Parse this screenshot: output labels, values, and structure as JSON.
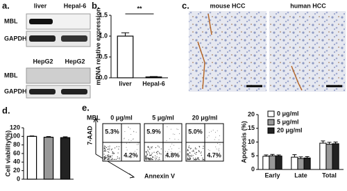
{
  "panel_labels": [
    "a.",
    "b.",
    "c.",
    "d.",
    "e."
  ],
  "blot_top": {
    "lanes": [
      "liver",
      "Hepal-6"
    ],
    "rows": [
      "MBL",
      "GAPDH"
    ]
  },
  "blot_bottom": {
    "lanes": [
      "HepG2",
      "HepG2"
    ],
    "rows": [
      "MBL",
      "GAPDH"
    ]
  },
  "histology": {
    "titles": [
      "mouse HCC",
      "human HCC"
    ]
  },
  "flow": {
    "row_label": "MBL",
    "doses": [
      "0 μg/ml",
      "5 μg/ml",
      "20 μg/ml"
    ],
    "upper_right": [
      "5.3%",
      "5.9%",
      "5.0%"
    ],
    "lower_right": [
      "4.2%",
      "4.8%",
      "4.7%"
    ],
    "y_label": "7-AAD",
    "x_label": "Annexin V"
  },
  "chart_data": [
    {
      "type": "bar",
      "y_label": "mRNA relative expression",
      "categories": [
        "liver",
        "Hepal-6"
      ],
      "values": [
        1.0,
        0.02
      ],
      "errors": [
        0.08,
        0.01
      ],
      "color": "#ffffff",
      "annotation": "**",
      "ylim": [
        0,
        1.5
      ],
      "yticks": [
        {
          "value": 0,
          "label": "0.0"
        },
        {
          "value": 0.5,
          "label": "0.5"
        },
        {
          "value": 1,
          "label": "1.0"
        },
        {
          "value": 1.5,
          "label": "1.5"
        }
      ]
    },
    {
      "type": "bar",
      "y_label": "Cell viability(%)",
      "categories": [
        null,
        null,
        null
      ],
      "values": [
        100,
        98,
        97
      ],
      "errors": [
        1,
        1.5,
        2
      ],
      "colors": [
        "#ffffff",
        "#999999",
        "#222222"
      ],
      "ylim": [
        0,
        120
      ],
      "yticks": [
        0,
        20,
        40,
        60,
        80,
        100,
        120
      ]
    },
    {
      "type": "grouped_bar",
      "y_label": "Apoptosis (%)",
      "categories": [
        "Early",
        "Late",
        "Total"
      ],
      "series": [
        {
          "name": "0 μg/ml",
          "color": "#ffffff",
          "values": [
            4.8,
            4.5,
            9.6
          ],
          "errors": [
            0.5,
            0.9,
            0.8
          ]
        },
        {
          "name": "5 μg/ml",
          "color": "#999999",
          "values": [
            5.0,
            4.0,
            9.2
          ],
          "errors": [
            0.5,
            0.6,
            0.7
          ]
        },
        {
          "name": "20 μg/ml",
          "color": "#222222",
          "values": [
            4.9,
            4.2,
            9.4
          ],
          "errors": [
            0.4,
            0.5,
            0.6
          ]
        }
      ],
      "legend": "upper left",
      "ylim": [
        0,
        20
      ],
      "yticks": [
        0,
        5,
        10,
        15,
        20
      ]
    }
  ]
}
